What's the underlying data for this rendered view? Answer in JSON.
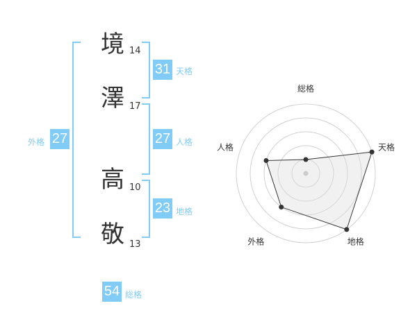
{
  "name": {
    "chars": [
      {
        "char": "境",
        "strokes": "14"
      },
      {
        "char": "澤",
        "strokes": "17"
      },
      {
        "char": "高",
        "strokes": "10"
      },
      {
        "char": "敬",
        "strokes": "13"
      }
    ]
  },
  "kakaku": {
    "tenkaku": {
      "label": "天格",
      "value": "31"
    },
    "jinkaku": {
      "label": "人格",
      "value": "27"
    },
    "chikaku": {
      "label": "地格",
      "value": "23"
    },
    "gaikaku": {
      "label": "外格",
      "value": "27"
    },
    "soukaku": {
      "label": "総格",
      "value": "54"
    }
  },
  "colors": {
    "accent": "#80ccf7",
    "text": "#333333",
    "radar_fill": "#f0f0f0"
  },
  "chart_data": {
    "type": "radar",
    "axes": [
      "総格",
      "天格",
      "地格",
      "外格",
      "人格"
    ],
    "values": [
      1,
      5,
      5,
      3,
      3
    ],
    "range": [
      0,
      5
    ],
    "rings": 5
  }
}
